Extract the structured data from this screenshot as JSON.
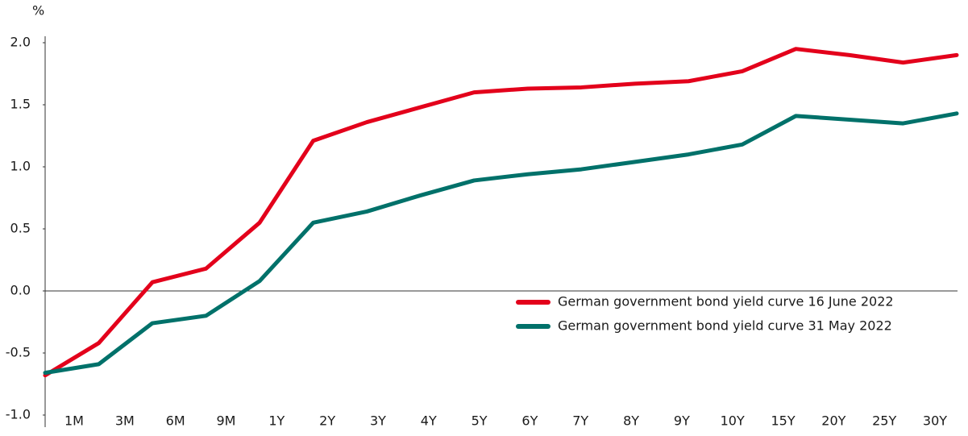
{
  "chart_data": {
    "type": "line",
    "y_label": "%",
    "categories": [
      "1M",
      "3M",
      "6M",
      "9M",
      "1Y",
      "2Y",
      "3Y",
      "4Y",
      "5Y",
      "6Y",
      "7Y",
      "8Y",
      "9Y",
      "10Y",
      "15Y",
      "20Y",
      "25Y",
      "30Y"
    ],
    "series": [
      {
        "name": "German government bond yield curve 16 June 2022",
        "color": "#e3001b",
        "values": [
          -0.68,
          -0.42,
          0.07,
          0.18,
          0.55,
          1.21,
          1.36,
          1.48,
          1.6,
          1.63,
          1.64,
          1.67,
          1.69,
          1.77,
          1.95,
          1.9,
          1.84,
          1.9
        ]
      },
      {
        "name": "German government bond yield curve 31 May 2022",
        "color": "#00716a",
        "values": [
          -0.66,
          -0.59,
          -0.26,
          -0.2,
          0.08,
          0.55,
          0.64,
          0.77,
          0.89,
          0.94,
          0.98,
          1.04,
          1.1,
          1.18,
          1.41,
          1.38,
          1.35,
          1.43
        ]
      }
    ],
    "ylim": [
      -1,
      2
    ],
    "yticks": [
      {
        "value": -1,
        "label": "-1.0"
      },
      -0.5,
      {
        "value": 0,
        "label": "0.0"
      },
      0.5,
      {
        "value": 1,
        "label": "1.0"
      },
      1.5,
      {
        "value": 2,
        "label": "2.0"
      }
    ],
    "zero_line": true,
    "legend": "lower right"
  }
}
